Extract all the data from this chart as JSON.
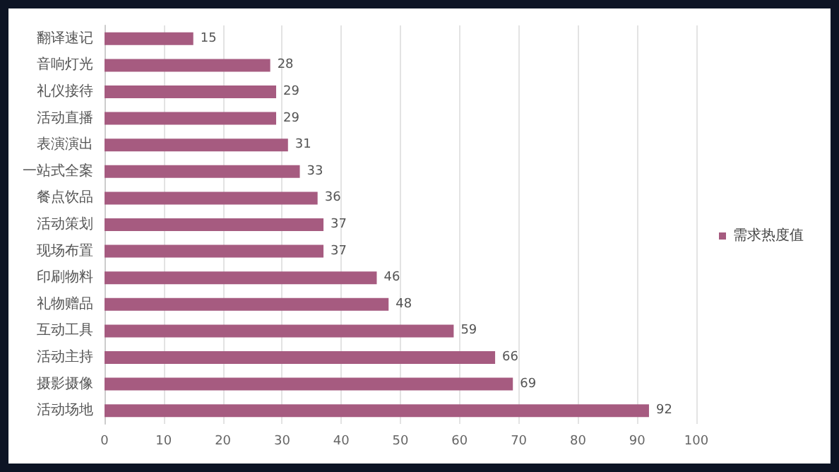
{
  "chart_data": {
    "type": "bar",
    "orientation": "horizontal",
    "categories": [
      "翻译速记",
      "音响灯光",
      "礼仪接待",
      "活动直播",
      "表演演出",
      "一站式全案",
      "餐点饮品",
      "活动策划",
      "现场布置",
      "印刷物料",
      "礼物赠品",
      "互动工具",
      "活动主持",
      "摄影摄像",
      "活动场地"
    ],
    "series": [
      {
        "name": "需求热度值",
        "color": "#a65b80",
        "values": [
          15,
          28,
          29,
          29,
          31,
          33,
          36,
          37,
          37,
          46,
          48,
          59,
          66,
          69,
          92
        ]
      }
    ],
    "xlim": [
      0,
      100
    ],
    "xticks": [
      0,
      10,
      20,
      30,
      40,
      50,
      60,
      70,
      80,
      90,
      100
    ],
    "grid": "x",
    "legend": "right",
    "data_labels": true
  }
}
